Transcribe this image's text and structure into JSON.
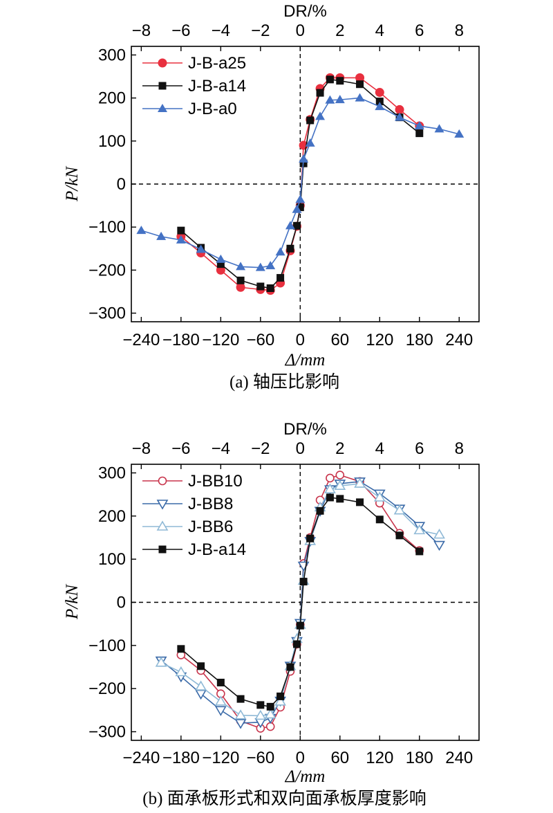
{
  "chart_data": [
    {
      "type": "line",
      "caption": "(a) 轴压比影响",
      "xlabel": "Δ/mm",
      "ylabel": "P/kN",
      "x2label": "DR/%",
      "xlim": [
        -255,
        270
      ],
      "ylim": [
        -320,
        320
      ],
      "x2lim": [
        -8.5,
        9.0
      ],
      "xticks": [
        -240,
        -180,
        -120,
        -60,
        0,
        60,
        120,
        180,
        240
      ],
      "xtick_labels": [
        "−240",
        "−180",
        "−120",
        "−60",
        "0",
        "60",
        "120",
        "180",
        "240"
      ],
      "yticks": [
        -300,
        -200,
        -100,
        0,
        100,
        200,
        300
      ],
      "ytick_labels": [
        "−300",
        "−200",
        "−100",
        "0",
        "100",
        "200",
        "300"
      ],
      "x2ticks": [
        -8,
        -6,
        -4,
        -2,
        0,
        2,
        4,
        6,
        8
      ],
      "x2tick_labels": [
        "−8",
        "−6",
        "−4",
        "−2",
        "0",
        "2",
        "4",
        "6",
        "8"
      ],
      "legend_position": "top-left",
      "series": [
        {
          "name": "J-B-a25",
          "color": "#e8303f",
          "marker": "circle-filled",
          "x": [
            -180,
            -150,
            -120,
            -90,
            -60,
            -45,
            -30,
            -15,
            -5,
            0,
            5,
            15,
            30,
            45,
            60,
            90,
            120,
            150,
            180
          ],
          "y": [
            -122,
            -160,
            -200,
            -240,
            -245,
            -247,
            -230,
            -155,
            -98,
            -50,
            90,
            150,
            222,
            247,
            247,
            247,
            213,
            173,
            135
          ]
        },
        {
          "name": "J-B-a14",
          "color": "#111111",
          "marker": "square-filled",
          "x": [
            -180,
            -150,
            -120,
            -90,
            -60,
            -45,
            -30,
            -15,
            -5,
            0,
            5,
            15,
            30,
            45,
            60,
            90,
            120,
            150,
            180
          ],
          "y": [
            -108,
            -148,
            -186,
            -224,
            -238,
            -242,
            -218,
            -150,
            -97,
            -54,
            48,
            148,
            212,
            243,
            240,
            232,
            192,
            155,
            118
          ]
        },
        {
          "name": "J-B-a0",
          "color": "#4472c4",
          "marker": "triangle-filled",
          "x": [
            -240,
            -210,
            -180,
            -150,
            -120,
            -90,
            -60,
            -45,
            -30,
            -15,
            -5,
            0,
            5,
            15,
            30,
            45,
            60,
            90,
            120,
            150,
            180,
            210,
            240
          ],
          "y": [
            -108,
            -122,
            -130,
            -152,
            -175,
            -192,
            -194,
            -190,
            -158,
            -97,
            -59,
            -36,
            58,
            95,
            157,
            195,
            196,
            200,
            180,
            155,
            135,
            128,
            116
          ]
        }
      ]
    },
    {
      "type": "line",
      "caption": "(b) 面承板形式和双向面承板厚度影响",
      "xlabel": "Δ/mm",
      "ylabel": "P/kN",
      "x2label": "DR/%",
      "xlim": [
        -255,
        270
      ],
      "ylim": [
        -320,
        320
      ],
      "x2lim": [
        -8.5,
        9.0
      ],
      "xticks": [
        -240,
        -180,
        -120,
        -60,
        0,
        60,
        120,
        180,
        240
      ],
      "xtick_labels": [
        "−240",
        "−180",
        "−120",
        "−60",
        "0",
        "60",
        "120",
        "180",
        "240"
      ],
      "yticks": [
        -300,
        -200,
        -100,
        0,
        100,
        200,
        300
      ],
      "ytick_labels": [
        "−300",
        "−200",
        "−100",
        "0",
        "100",
        "200",
        "300"
      ],
      "x2ticks": [
        -8,
        -6,
        -4,
        -2,
        0,
        2,
        4,
        6,
        8
      ],
      "x2tick_labels": [
        "−8",
        "−6",
        "−4",
        "−2",
        "0",
        "2",
        "4",
        "6",
        "8"
      ],
      "legend_position": "top-left",
      "series": [
        {
          "name": "J-BB10",
          "color": "#c8344b",
          "marker": "circle-open",
          "x": [
            -180,
            -150,
            -120,
            -90,
            -60,
            -45,
            -30,
            -15,
            -5,
            0,
            5,
            15,
            30,
            45,
            60,
            90,
            120,
            150,
            180
          ],
          "y": [
            -122,
            -158,
            -212,
            -275,
            -292,
            -288,
            -243,
            -160,
            -97,
            -52,
            90,
            150,
            237,
            288,
            295,
            280,
            230,
            160,
            120
          ]
        },
        {
          "name": "J-BB8",
          "color": "#3a6aa8",
          "marker": "triangle-down-open",
          "x": [
            -210,
            -180,
            -150,
            -120,
            -90,
            -60,
            -45,
            -30,
            -15,
            -5,
            0,
            5,
            15,
            30,
            45,
            60,
            90,
            120,
            150,
            180,
            210
          ],
          "y": [
            -135,
            -172,
            -212,
            -250,
            -280,
            -278,
            -268,
            -228,
            -147,
            -90,
            -48,
            85,
            142,
            212,
            262,
            275,
            280,
            252,
            217,
            177,
            133
          ]
        },
        {
          "name": "J-BB6",
          "color": "#8fb9d6",
          "marker": "triangle-open",
          "x": [
            -210,
            -180,
            -150,
            -120,
            -90,
            -60,
            -45,
            -30,
            -15,
            -5,
            0,
            5,
            15,
            30,
            45,
            60,
            90,
            120,
            150,
            180,
            210
          ],
          "y": [
            -140,
            -162,
            -195,
            -230,
            -262,
            -263,
            -260,
            -230,
            -148,
            -85,
            -52,
            50,
            142,
            220,
            262,
            270,
            275,
            243,
            213,
            167,
            157
          ]
        },
        {
          "name": "J-B-a14",
          "color": "#111111",
          "marker": "square-filled",
          "x": [
            -180,
            -150,
            -120,
            -90,
            -60,
            -45,
            -30,
            -15,
            -5,
            0,
            5,
            15,
            30,
            45,
            60,
            90,
            120,
            150,
            180
          ],
          "y": [
            -108,
            -148,
            -186,
            -224,
            -238,
            -242,
            -218,
            -150,
            -97,
            -54,
            48,
            148,
            212,
            243,
            240,
            232,
            192,
            155,
            118
          ]
        }
      ]
    }
  ]
}
